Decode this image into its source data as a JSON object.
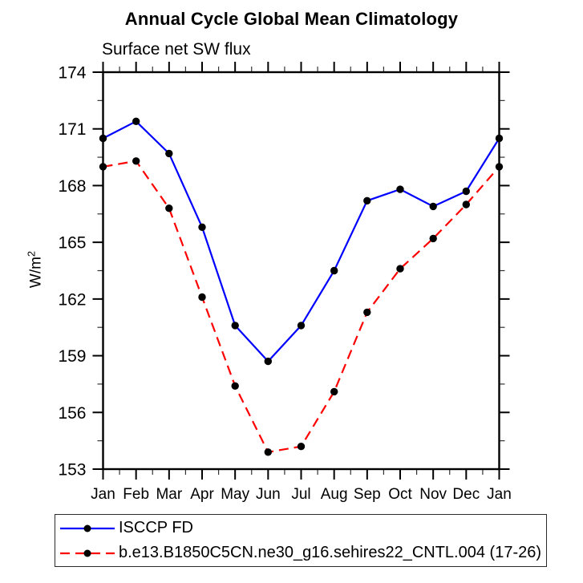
{
  "chart_data": {
    "type": "line",
    "title": "Annual Cycle Global Mean Climatology",
    "subtitle": "Surface net SW flux",
    "ylabel": "W/m²",
    "ylabel_base": "W/m",
    "ylabel_sup": "2",
    "categories": [
      "Jan",
      "Feb",
      "Mar",
      "Apr",
      "May",
      "Jun",
      "Jul",
      "Aug",
      "Sep",
      "Oct",
      "Nov",
      "Dec",
      "Jan"
    ],
    "series": [
      {
        "key": "isccp-fd",
        "name": "ISCCP FD",
        "color": "#0000ff",
        "line_style": "solid",
        "marker": "circle",
        "marker_color": "#000000",
        "values": [
          170.5,
          171.4,
          169.7,
          165.8,
          160.6,
          158.7,
          160.6,
          163.5,
          167.2,
          167.8,
          166.9,
          167.7,
          170.5
        ]
      },
      {
        "key": "model-cntl004",
        "name": "b.e13.B1850C5CN.ne30_g16.sehires22_CNTL.004 (17-26)",
        "color": "#ff0000",
        "line_style": "dashed",
        "marker": "circle",
        "marker_color": "#000000",
        "values": [
          169.0,
          169.3,
          166.8,
          162.1,
          157.4,
          153.9,
          154.2,
          157.1,
          161.3,
          163.6,
          165.2,
          167.0,
          169.0
        ]
      }
    ],
    "ylim": [
      153,
      174
    ],
    "yticks": [
      153,
      156,
      159,
      162,
      165,
      168,
      171,
      174
    ],
    "y_minor_step": 1.5,
    "x_minor_ticks": true,
    "grid": false,
    "legend_position": "bottom",
    "axis_color": "#000000",
    "background_color": "#ffffff"
  }
}
